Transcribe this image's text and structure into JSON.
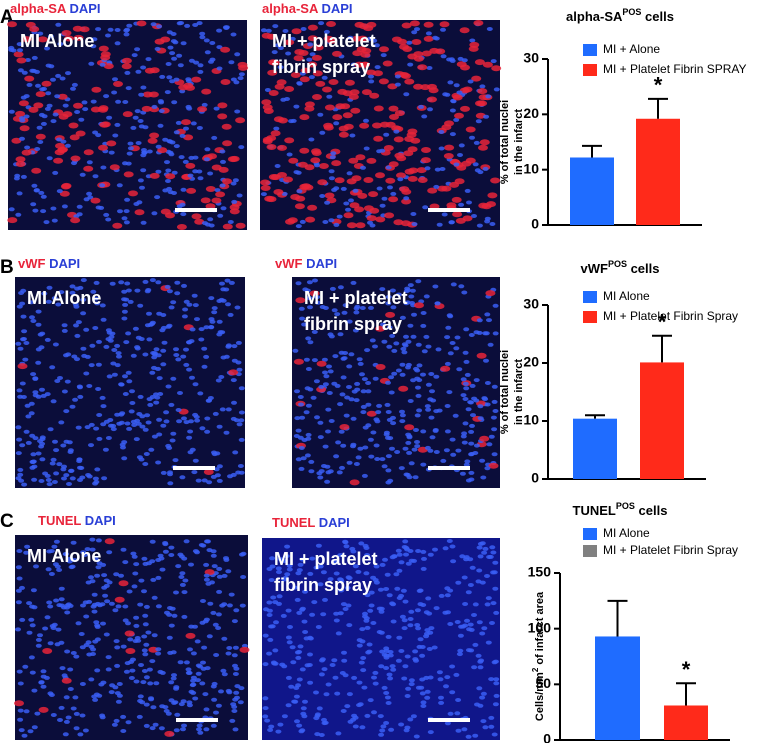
{
  "panels": [
    {
      "letter": "A",
      "images": [
        {
          "stain": "alpha-SA",
          "counterstain": "DAPI",
          "label": [
            "MI Alone"
          ]
        },
        {
          "stain": "alpha-SA",
          "counterstain": "DAPI",
          "label": [
            "MI +  platelet",
            "fibrin spray"
          ]
        }
      ]
    },
    {
      "letter": "B",
      "images": [
        {
          "stain": "vWF",
          "counterstain": "DAPI",
          "label": [
            "MI Alone"
          ]
        },
        {
          "stain": "vWF",
          "counterstain": "DAPI",
          "label": [
            "MI +  platelet",
            "fibrin spray"
          ]
        }
      ]
    },
    {
      "letter": "C",
      "images": [
        {
          "stain": "TUNEL",
          "counterstain": "DAPI",
          "label": [
            "MI Alone"
          ]
        },
        {
          "stain": "TUNEL",
          "counterstain": "DAPI",
          "label": [
            "MI +  platelet",
            "fibrin spray"
          ]
        }
      ]
    }
  ],
  "chart_data": [
    {
      "type": "bar",
      "title": "alpha-SA",
      "title_superscript": "POS",
      "title_suffix": "cells",
      "ylabel": [
        "% of total nuclei",
        "in the infarct"
      ],
      "ylim": [
        0,
        30
      ],
      "yticks": [
        0,
        10,
        20,
        30
      ],
      "series": [
        {
          "name": "MI + Alone",
          "color": "#1f6cff",
          "values": [
            12.2
          ],
          "errors": [
            2.1
          ]
        },
        {
          "name": "MI + Platelet Fibrin SPRAY",
          "color": "#ff2a1a",
          "values": [
            19.2
          ],
          "errors": [
            3.6
          ],
          "significance": "*"
        }
      ]
    },
    {
      "type": "bar",
      "title": "vWF",
      "title_superscript": "POS",
      "title_suffix": "cells",
      "ylabel": [
        "% of total nuclei",
        "in the infarct"
      ],
      "ylim": [
        0,
        30
      ],
      "yticks": [
        0,
        10,
        20,
        30
      ],
      "series": [
        {
          "name": "MI Alone",
          "color": "#1f6cff",
          "values": [
            10.4
          ],
          "errors": [
            0.6
          ]
        },
        {
          "name": "MI + Platelet Fibrin Spray",
          "color": "#ff2a1a",
          "values": [
            20.1
          ],
          "errors": [
            4.6
          ],
          "significance": "*"
        }
      ]
    },
    {
      "type": "bar",
      "title": "TUNEL",
      "title_superscript": "POS",
      "title_suffix": "cells",
      "ylabel": [
        "Cells/mm"
      ],
      "ylabel_superscript": "2",
      "ylabel_suffix": "of infarct area",
      "ylim": [
        0,
        150
      ],
      "yticks": [
        0,
        50,
        100,
        150
      ],
      "series": [
        {
          "name": "MI Alone",
          "color": "#1f6cff",
          "values": [
            93
          ],
          "errors": [
            32
          ]
        },
        {
          "name": "MI + Platelet Fibrin Spray",
          "color": "#ff2a1a",
          "legend_color": "#808080",
          "values": [
            31
          ],
          "errors": [
            20
          ],
          "significance": "*"
        }
      ]
    }
  ]
}
